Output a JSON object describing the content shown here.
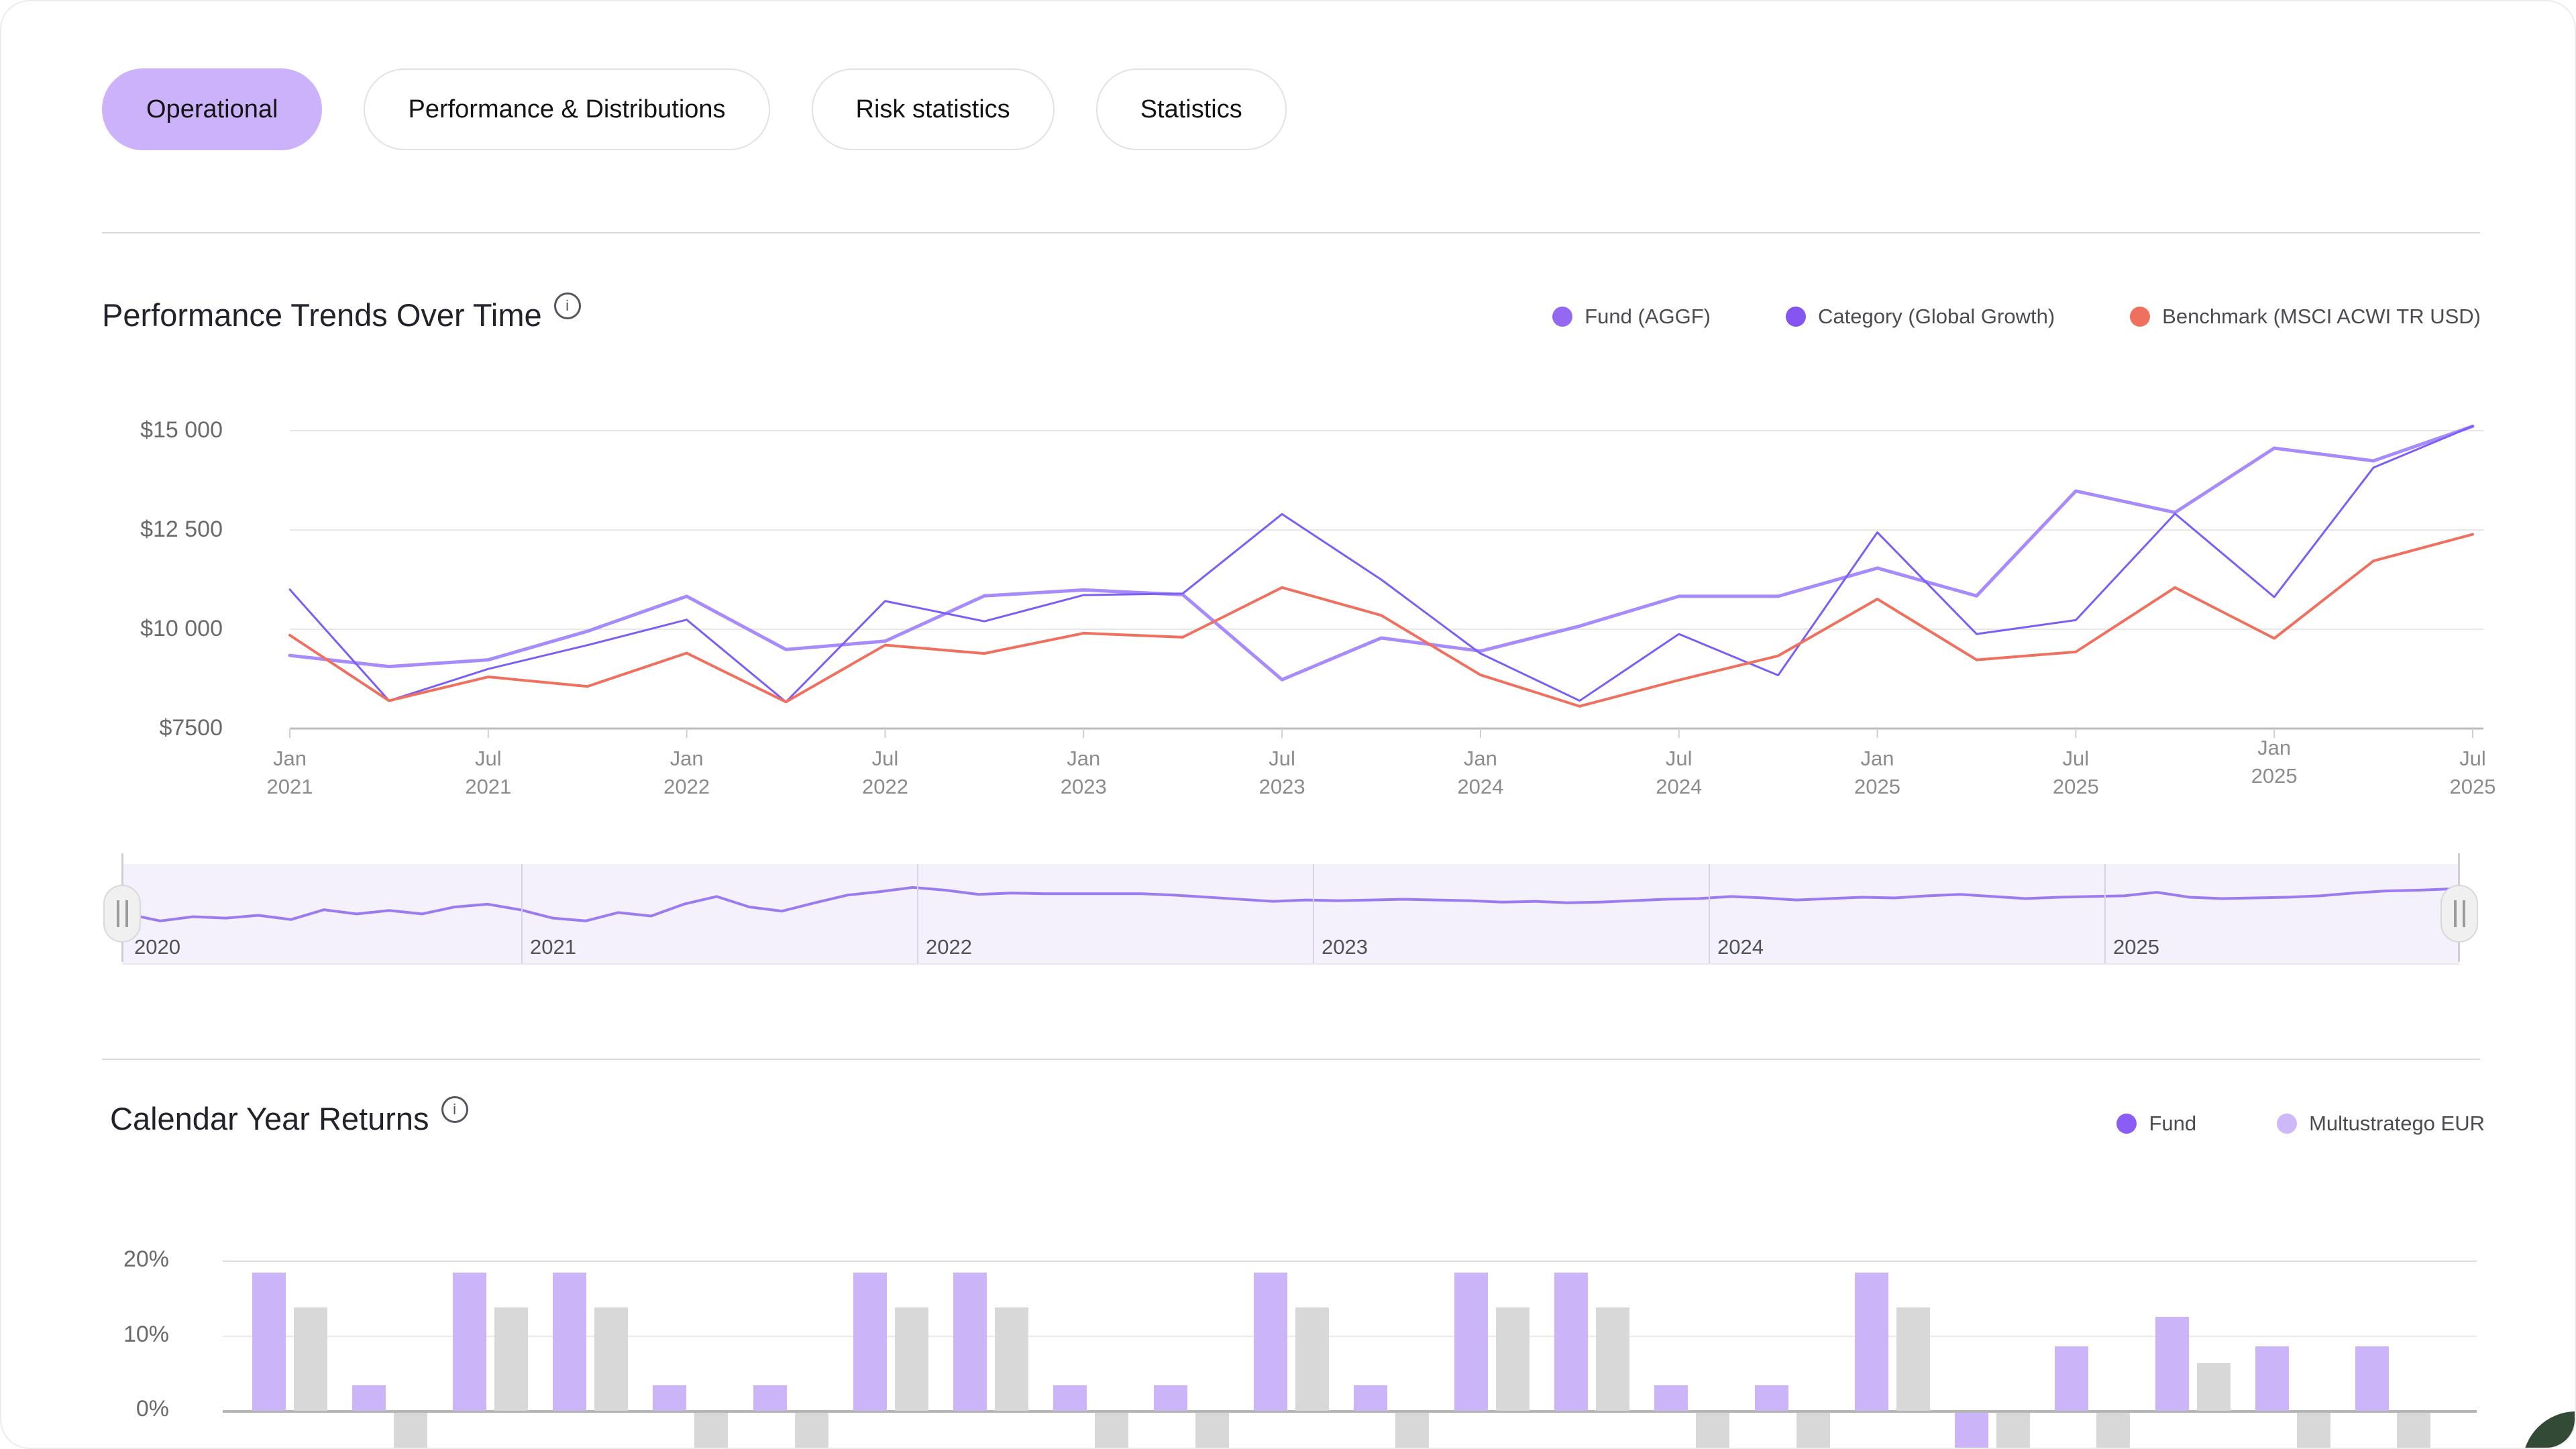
{
  "tabs": [
    {
      "label": "Operational",
      "active": true
    },
    {
      "label": "Performance & Distributions",
      "active": false
    },
    {
      "label": "Risk statistics",
      "active": false
    },
    {
      "label": "Statistics",
      "active": false
    }
  ],
  "info_icon_glyph": "i",
  "accent_color": "#cbb2fa",
  "chart_data": [
    {
      "id": "performance-trends",
      "type": "line",
      "title": "Performance Trends Over Time",
      "ylabel": "",
      "xlabel": "",
      "grid": true,
      "legend_position": "top-right",
      "y_tick_labels": [
        "$15 000",
        "$12 500",
        "$10 000",
        "$7500"
      ],
      "y_tick_values": [
        15000,
        12500,
        10000,
        7500
      ],
      "ylim": [
        7000,
        15400
      ],
      "x_tick_labels": [
        {
          "month": "Jan",
          "year": "2021"
        },
        {
          "month": "Jul",
          "year": "2021"
        },
        {
          "month": "Jan",
          "year": "2022"
        },
        {
          "month": "Jul",
          "year": "2022"
        },
        {
          "month": "Jan",
          "year": "2023"
        },
        {
          "month": "Jul",
          "year": "2023"
        },
        {
          "month": "Jan",
          "year": "2024"
        },
        {
          "month": "Jul",
          "year": "2024"
        },
        {
          "month": "Jan",
          "year": "2025"
        },
        {
          "month": "Jul",
          "year": "2025"
        },
        {
          "month": "Jan",
          "year": "2025"
        },
        {
          "month": "Jul",
          "year": "2025"
        }
      ],
      "x_unit": "quarterly points, 2 per tick interval",
      "series": [
        {
          "name": "Fund (AGGF)",
          "color": "#a78bfa",
          "legend_color": "#9468f1",
          "stroke_width": 5,
          "values": [
            9340,
            9060,
            9230,
            9950,
            10830,
            9490,
            9700,
            10840,
            10990,
            10870,
            8730,
            9780,
            9450,
            10080,
            10830,
            10830,
            11540,
            10840,
            13480,
            12940,
            14560,
            14240,
            15110
          ]
        },
        {
          "name": "Category (Global Growth)",
          "color": "#7d5ef5",
          "legend_color": "#8455f0",
          "stroke_width": 3,
          "values": [
            11000,
            8200,
            9000,
            9600,
            10240,
            8170,
            10710,
            10200,
            10860,
            10900,
            12900,
            11250,
            9390,
            8200,
            9880,
            8840,
            12440,
            9880,
            10230,
            12910,
            10810,
            14070,
            15115
          ]
        },
        {
          "name": "Benchmark (MSCI ACWI TR USD)",
          "color": "#f0705f",
          "legend_color": "#f0705f",
          "stroke_width": 4,
          "values": [
            9850,
            8200,
            8800,
            8560,
            9400,
            8170,
            9600,
            9390,
            9900,
            9800,
            11050,
            10350,
            8850,
            8060,
            8720,
            9330,
            10760,
            9230,
            9430,
            11050,
            9770,
            11720,
            12390
          ]
        }
      ]
    },
    {
      "id": "range-brush",
      "type": "area",
      "role": "time-range-selector",
      "years": [
        "2020",
        "2021",
        "2022",
        "2023",
        "2024",
        "2025"
      ],
      "line_color": "#9b7cf0",
      "background": "#f4f0fc",
      "y_pct_from_top": [
        60,
        70,
        64,
        66,
        62,
        68,
        54,
        60,
        55,
        60,
        50,
        46,
        54,
        66,
        70,
        58,
        63,
        46,
        35,
        50,
        56,
        44,
        33,
        28,
        22,
        26,
        32,
        30,
        31,
        31,
        31,
        31,
        33,
        36,
        39,
        42,
        40,
        41,
        40,
        39,
        40,
        41,
        43,
        42,
        44,
        43,
        41,
        39,
        38,
        35,
        37,
        40,
        38,
        36,
        37,
        34,
        32,
        35,
        38,
        36,
        35,
        34,
        29,
        36,
        38,
        37,
        36,
        34,
        30,
        27,
        26,
        24
      ]
    },
    {
      "id": "calendar-year-returns",
      "type": "bar",
      "title": "Calendar Year Returns",
      "grid": true,
      "legend_position": "top-right",
      "y_tick_labels": [
        "20%",
        "10%",
        "0%"
      ],
      "y_tick_values": [
        20,
        10,
        0
      ],
      "note": "negative bars are clipped at the bottom edge of the viewport",
      "series": [
        {
          "name": "Fund",
          "bar_color": "#ccb4f8",
          "legend_color": "#8b5cf6",
          "values": [
            18.5,
            3.4,
            18.5,
            18.5,
            3.4,
            3.4,
            18.5,
            18.5,
            3.4,
            3.4,
            18.5,
            3.4,
            18.5,
            18.5,
            3.4,
            3.4,
            18.5,
            -6,
            8.6,
            12.6,
            8.6,
            8.6
          ]
        },
        {
          "name": "Multustratego EUR",
          "bar_color": "#d8d8d8",
          "legend_color": "#cdb9f9",
          "values": [
            13.8,
            -6,
            13.8,
            13.8,
            -6,
            -6,
            13.8,
            13.8,
            -6,
            -6,
            13.8,
            -6,
            13.8,
            13.8,
            -6,
            -6,
            13.8,
            -6,
            -6,
            6.4,
            -6,
            -6
          ]
        }
      ]
    }
  ]
}
